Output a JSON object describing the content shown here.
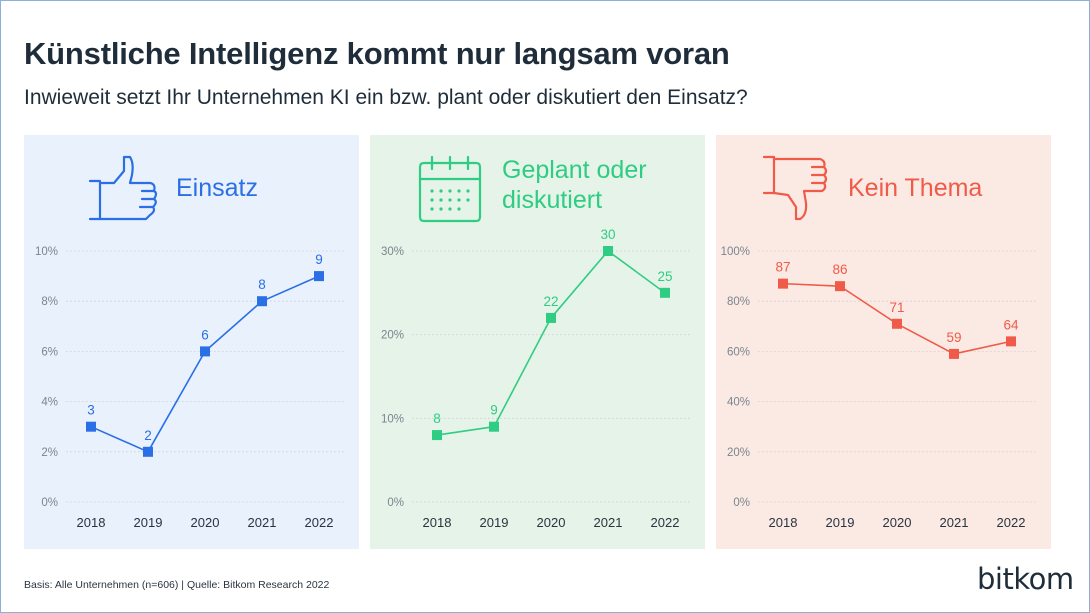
{
  "header": {
    "title": "Künstliche Intelligenz kommt nur langsam voran",
    "subtitle": "Inwieweit setzt Ihr Unternehmen KI ein bzw. plant oder diskutiert den Einsatz?"
  },
  "footer": {
    "source": "Basis: Alle Unternehmen (n=606) | Quelle: Bitkom Research 2022",
    "brand": "bitkom"
  },
  "colors": {
    "einsatz": "#2b6fe6",
    "geplant": "#2fcd83",
    "kein_thema": "#f05a49"
  },
  "icons": [
    "thumbs-up-icon",
    "calendar-icon",
    "thumbs-down-icon"
  ],
  "chart_data": [
    {
      "type": "line",
      "title": "Einsatz",
      "x": [
        "2018",
        "2019",
        "2020",
        "2021",
        "2022"
      ],
      "values": [
        3,
        2,
        6,
        8,
        9
      ],
      "ylim": [
        0,
        10
      ],
      "yticks": [
        "0%",
        "2%",
        "4%",
        "6%",
        "8%",
        "10%"
      ],
      "ytick_values": [
        0,
        2,
        4,
        6,
        8,
        10
      ],
      "color": "#2b6fe6",
      "icon": "thumbs-up-icon"
    },
    {
      "type": "line",
      "title": "Geplant oder\ndiskutiert",
      "x": [
        "2018",
        "2019",
        "2020",
        "2021",
        "2022"
      ],
      "values": [
        8,
        9,
        22,
        30,
        25
      ],
      "ylim": [
        0,
        30
      ],
      "yticks": [
        "0%",
        "10%",
        "20%",
        "30%"
      ],
      "ytick_values": [
        0,
        10,
        20,
        30
      ],
      "color": "#2fcd83",
      "icon": "calendar-icon"
    },
    {
      "type": "line",
      "title": "Kein Thema",
      "x": [
        "2018",
        "2019",
        "2020",
        "2021",
        "2022"
      ],
      "values": [
        87,
        86,
        71,
        59,
        64
      ],
      "ylim": [
        0,
        100
      ],
      "yticks": [
        "0%",
        "20%",
        "40%",
        "60%",
        "80%",
        "100%"
      ],
      "ytick_values": [
        0,
        20,
        40,
        60,
        80,
        100
      ],
      "color": "#f05a49",
      "icon": "thumbs-down-icon"
    }
  ]
}
